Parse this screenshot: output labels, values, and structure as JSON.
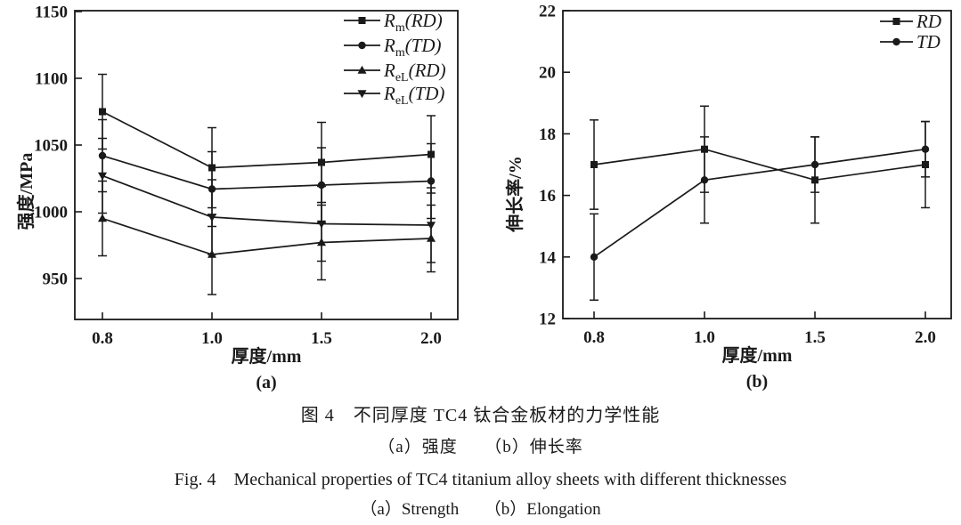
{
  "colors": {
    "ink": "#1a1a1a",
    "background": "#ffffff"
  },
  "figure": {
    "caption_cn": "图 4　不同厚度 TC4 钛合金板材的力学性能",
    "caption_cn_sub": "（a）强度　　（b）伸长率",
    "caption_en": "Fig. 4　Mechanical properties of TC4 titanium alloy sheets with different thicknesses",
    "caption_en_sub": "（a）Strength　　（b）Elongation"
  },
  "chart_data": [
    {
      "type": "line",
      "panel": "(a)",
      "xlabel": "厚度/mm",
      "ylabel": "强度/MPa",
      "categories": [
        "0.8",
        "1.0",
        "1.5",
        "2.0"
      ],
      "x_values_mm": [
        0.8,
        1.0,
        1.5,
        2.0
      ],
      "ylim": [
        920,
        1150
      ],
      "yticks": [
        950,
        1000,
        1050,
        1100,
        1150
      ],
      "grid": false,
      "legend_position": "top-right",
      "error_bars": true,
      "series": [
        {
          "name": "Rm(RD)",
          "label": {
            "base": "R",
            "sub": "m",
            "paren": "(RD)"
          },
          "marker": "square",
          "values": [
            1075,
            1033,
            1037,
            1043
          ],
          "errors": [
            28,
            30,
            30,
            29
          ]
        },
        {
          "name": "Rm(TD)",
          "label": {
            "base": "R",
            "sub": "m",
            "paren": "(TD)"
          },
          "marker": "circle",
          "values": [
            1042,
            1017,
            1020,
            1023
          ],
          "errors": [
            27,
            28,
            28,
            28
          ]
        },
        {
          "name": "ReL(RD)",
          "label": {
            "base": "R",
            "sub": "eL",
            "paren": "(RD)"
          },
          "marker": "triangle-up",
          "values": [
            995,
            968,
            977,
            980
          ],
          "errors": [
            28,
            30,
            28,
            25
          ]
        },
        {
          "name": "ReL(TD)",
          "label": {
            "base": "R",
            "sub": "eL",
            "paren": "(TD)"
          },
          "marker": "triangle-down",
          "values": [
            1027,
            996,
            991,
            990
          ],
          "errors": [
            28,
            28,
            28,
            28
          ]
        }
      ]
    },
    {
      "type": "line",
      "panel": "(b)",
      "xlabel": "厚度/mm",
      "ylabel": "伸长率/%",
      "categories": [
        "0.8",
        "1.0",
        "1.5",
        "2.0"
      ],
      "x_values_mm": [
        0.8,
        1.0,
        1.5,
        2.0
      ],
      "ylim": [
        12,
        22
      ],
      "yticks": [
        12,
        14,
        16,
        18,
        20,
        22
      ],
      "grid": false,
      "legend_position": "top-right",
      "error_bars": true,
      "series": [
        {
          "name": "RD",
          "label": {
            "base": "RD",
            "sub": "",
            "paren": ""
          },
          "marker": "square",
          "values": [
            17.0,
            17.5,
            16.5,
            17.0
          ],
          "errors": [
            1.45,
            1.4,
            1.4,
            1.4
          ]
        },
        {
          "name": "TD",
          "label": {
            "base": "TD",
            "sub": "",
            "paren": ""
          },
          "marker": "circle",
          "values": [
            14.0,
            16.5,
            17.0,
            17.5
          ],
          "errors": [
            1.4,
            1.4,
            0.9,
            0.9
          ]
        }
      ]
    }
  ]
}
